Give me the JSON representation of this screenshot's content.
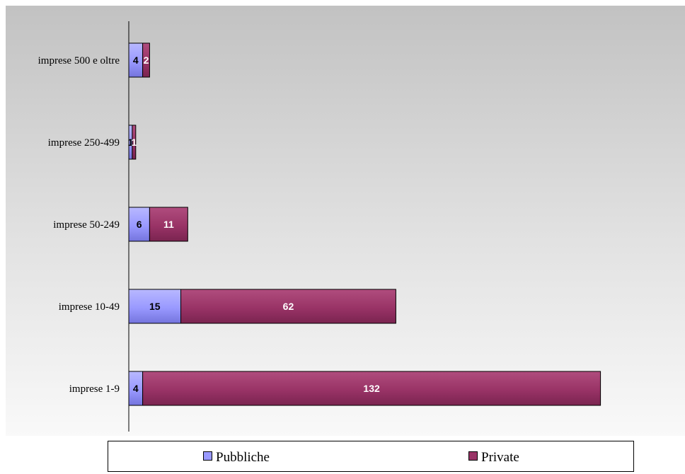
{
  "chart_data": {
    "type": "bar",
    "orientation": "horizontal",
    "stacked": true,
    "categories": [
      "imprese 1-9",
      "imprese 10-49",
      "imprese 50-249",
      "imprese 250-499",
      "imprese 500 e oltre"
    ],
    "series": [
      {
        "name": "Pubbliche",
        "values": [
          4,
          15,
          6,
          1,
          4
        ],
        "color": "#9999ff"
      },
      {
        "name": "Private",
        "values": [
          132,
          62,
          11,
          1,
          2
        ],
        "color": "#993366"
      }
    ],
    "xlim": [
      0,
      142
    ],
    "grid": false,
    "legend_position": "bottom"
  }
}
